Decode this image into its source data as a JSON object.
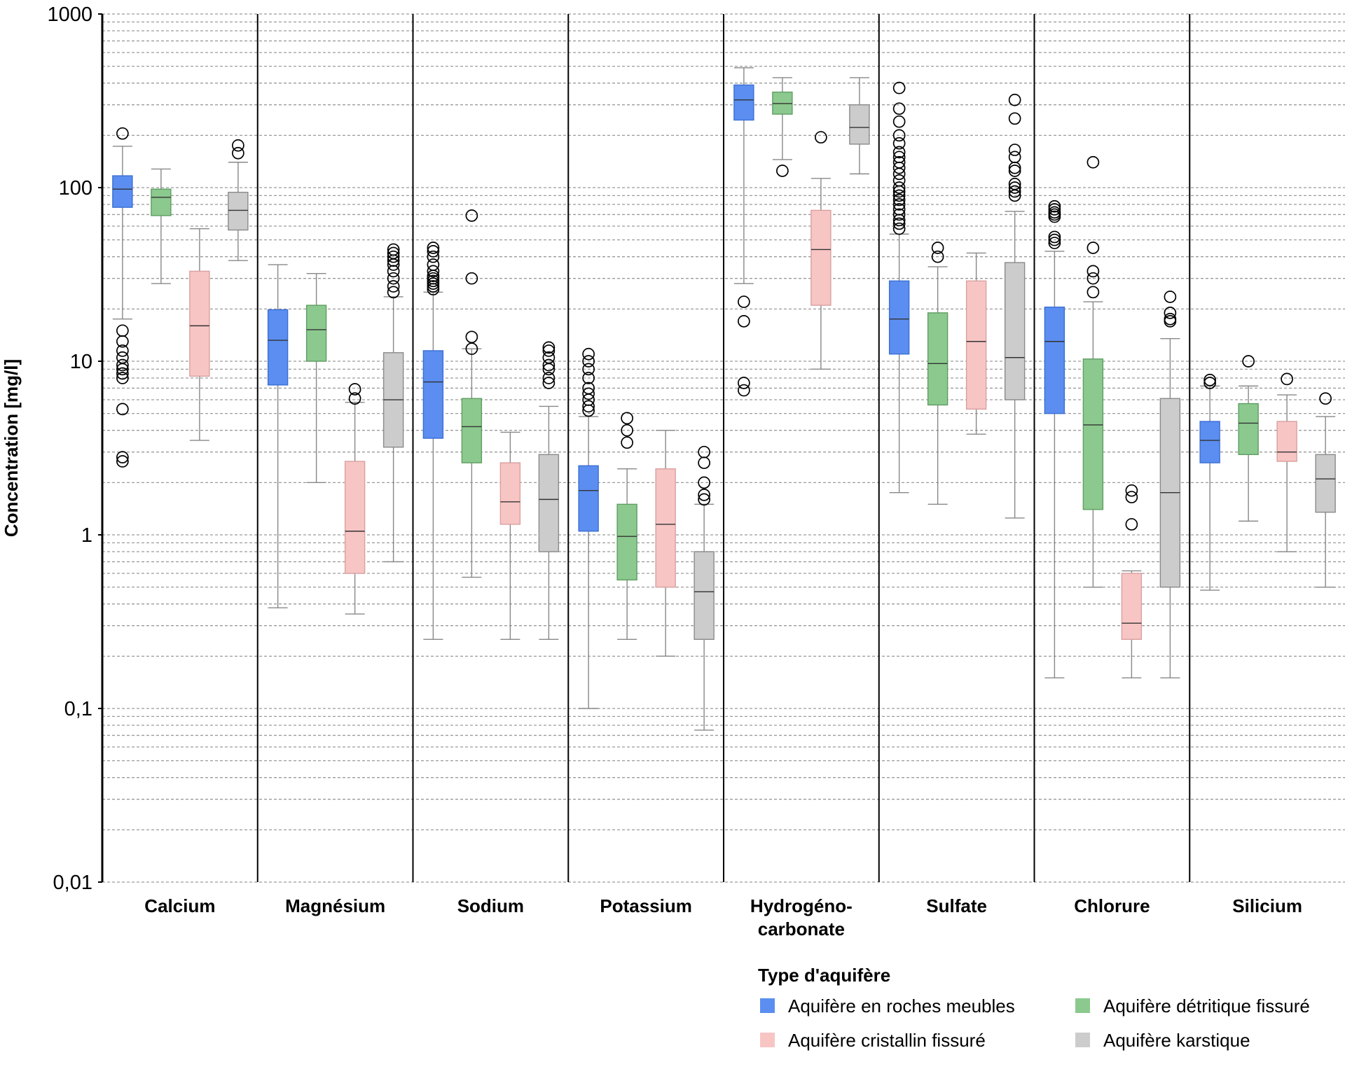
{
  "chart_data": {
    "type": "box",
    "ylabel": "Concentration [mg/l]",
    "yscale": "log",
    "ylim": [
      0.01,
      1000
    ],
    "yticks": [
      {
        "value": 1000,
        "label": "1000"
      },
      {
        "value": 100,
        "label": "100"
      },
      {
        "value": 10,
        "label": "10"
      },
      {
        "value": 1,
        "label": "1"
      },
      {
        "value": 0.1,
        "label": "0,1"
      },
      {
        "value": 0.01,
        "label": "0,01"
      }
    ],
    "grid": "minor dashed",
    "categories": [
      "Calcium",
      "Magnésium",
      "Sodium",
      "Potassium",
      "Hydrogéno-\ncarbonate",
      "Sulfate",
      "Chlorure",
      "Silicium"
    ],
    "legend": {
      "title": "Type d'aquifère",
      "placement": "bottom-right"
    },
    "series": [
      {
        "name": "Aquifère en roches meubles",
        "color": "#5b8ef0",
        "boxes": [
          {
            "whisker_low": 17.5,
            "q1": 77,
            "median": 98,
            "q3": 117,
            "whisker_high": 173,
            "outliers": [
              205,
              15,
              13,
              11.5,
              10.5,
              9.5,
              9,
              8.5,
              8,
              5.3,
              2.8,
              2.65
            ]
          },
          {
            "whisker_low": 0.38,
            "q1": 7.3,
            "median": 13.2,
            "q3": 19.8,
            "whisker_high": 36,
            "outliers": []
          },
          {
            "whisker_low": 0.25,
            "q1": 3.6,
            "median": 7.6,
            "q3": 11.5,
            "whisker_high": 25,
            "outliers": [
              45,
              43,
              40,
              36,
              33,
              31,
              30,
              29,
              28,
              27,
              26
            ]
          },
          {
            "whisker_low": 0.1,
            "q1": 1.05,
            "median": 1.8,
            "q3": 2.5,
            "whisker_high": 4.8,
            "outliers": [
              11,
              10,
              9,
              8,
              7,
              6.5,
              6,
              5.5,
              5.2
            ]
          },
          {
            "whisker_low": 28,
            "q1": 245,
            "median": 320,
            "q3": 390,
            "whisker_high": 490,
            "outliers": [
              22,
              17,
              7.5,
              6.8
            ]
          },
          {
            "whisker_low": 1.75,
            "q1": 11,
            "median": 17.5,
            "q3": 29,
            "whisker_high": 54,
            "outliers": [
              375,
              285,
              240,
              200,
              180,
              160,
              150,
              140,
              130,
              120,
              110,
              100,
              95,
              90,
              85,
              80,
              75,
              70,
              65,
              62,
              58
            ]
          },
          {
            "whisker_low": 0.15,
            "q1": 5,
            "median": 13,
            "q3": 20.5,
            "whisker_high": 43,
            "outliers": [
              78,
              75,
              72,
              70,
              68,
              52,
              50,
              48
            ]
          },
          {
            "whisker_low": 0.48,
            "q1": 2.6,
            "median": 3.5,
            "q3": 4.5,
            "whisker_high": 7.2,
            "outliers": [
              7.8,
              7.5
            ]
          }
        ]
      },
      {
        "name": "Aquifère détritique fissuré",
        "color": "#8cc98e",
        "boxes": [
          {
            "whisker_low": 28,
            "q1": 69,
            "median": 88,
            "q3": 98,
            "whisker_high": 128,
            "outliers": []
          },
          {
            "whisker_low": 2,
            "q1": 10,
            "median": 15.2,
            "q3": 21,
            "whisker_high": 32,
            "outliers": []
          },
          {
            "whisker_low": 0.57,
            "q1": 2.6,
            "median": 4.2,
            "q3": 6.1,
            "whisker_high": 11.8,
            "outliers": [
              69,
              30,
              13.8,
              11.8
            ]
          },
          {
            "whisker_low": 0.25,
            "q1": 0.55,
            "median": 0.98,
            "q3": 1.5,
            "whisker_high": 2.4,
            "outliers": [
              4.7,
              4.0,
              3.4
            ]
          },
          {
            "whisker_low": 145,
            "q1": 265,
            "median": 305,
            "q3": 355,
            "whisker_high": 430,
            "outliers": [
              125
            ]
          },
          {
            "whisker_low": 1.5,
            "q1": 5.6,
            "median": 9.7,
            "q3": 19,
            "whisker_high": 35,
            "outliers": [
              45,
              40
            ]
          },
          {
            "whisker_low": 0.5,
            "q1": 1.4,
            "median": 4.3,
            "q3": 10.3,
            "whisker_high": 22,
            "outliers": [
              140,
              45,
              33,
              30,
              25
            ]
          },
          {
            "whisker_low": 1.2,
            "q1": 2.9,
            "median": 4.4,
            "q3": 5.7,
            "whisker_high": 7.2,
            "outliers": [
              10
            ]
          }
        ]
      },
      {
        "name": "Aquifère cristallin fissuré",
        "color": "#f8c5c5",
        "boxes": [
          {
            "whisker_low": 3.5,
            "q1": 8.2,
            "median": 16,
            "q3": 33,
            "whisker_high": 58,
            "outliers": []
          },
          {
            "whisker_low": 0.35,
            "q1": 0.6,
            "median": 1.05,
            "q3": 2.65,
            "whisker_high": 5.8,
            "outliers": [
              6.9,
              6.1
            ]
          },
          {
            "whisker_low": 0.25,
            "q1": 1.15,
            "median": 1.55,
            "q3": 2.6,
            "whisker_high": 3.9,
            "outliers": []
          },
          {
            "whisker_low": 0.2,
            "q1": 0.5,
            "median": 1.15,
            "q3": 2.4,
            "whisker_high": 4,
            "outliers": []
          },
          {
            "whisker_low": 9,
            "q1": 21,
            "median": 44,
            "q3": 74,
            "whisker_high": 113,
            "outliers": [
              195
            ]
          },
          {
            "whisker_low": 3.8,
            "q1": 5.3,
            "median": 13,
            "q3": 29,
            "whisker_high": 42,
            "outliers": []
          },
          {
            "whisker_low": 0.15,
            "q1": 0.25,
            "median": 0.31,
            "q3": 0.6,
            "whisker_high": 0.62,
            "outliers": [
              1.8,
              1.65,
              1.15
            ]
          },
          {
            "whisker_low": 0.8,
            "q1": 2.65,
            "median": 3.0,
            "q3": 4.5,
            "whisker_high": 6.4,
            "outliers": [
              7.9
            ]
          }
        ]
      },
      {
        "name": "Aquifère karstique",
        "color": "#cccccc",
        "boxes": [
          {
            "whisker_low": 38,
            "q1": 57,
            "median": 74,
            "q3": 94,
            "whisker_high": 140,
            "outliers": [
              175,
              158
            ]
          },
          {
            "whisker_low": 0.7,
            "q1": 3.2,
            "median": 6,
            "q3": 11.2,
            "whisker_high": 23.5,
            "outliers": [
              44,
              42,
              40,
              38,
              36,
              33,
              30,
              27,
              25
            ]
          },
          {
            "whisker_low": 0.25,
            "q1": 0.8,
            "median": 1.6,
            "q3": 2.9,
            "whisker_high": 5.5,
            "outliers": [
              12,
              11.5,
              10.5,
              9.5,
              9,
              8,
              7.5
            ]
          },
          {
            "whisker_low": 0.075,
            "q1": 0.25,
            "median": 0.47,
            "q3": 0.8,
            "whisker_high": 1.5,
            "outliers": [
              3,
              2.6,
              2.0,
              1.7,
              1.6
            ]
          },
          {
            "whisker_low": 120,
            "q1": 178,
            "median": 222,
            "q3": 300,
            "whisker_high": 430,
            "outliers": []
          },
          {
            "whisker_low": 1.25,
            "q1": 6,
            "median": 10.5,
            "q3": 37,
            "whisker_high": 73,
            "outliers": [
              320,
              250,
              165,
              150,
              130,
              125,
              105,
              100,
              95,
              90
            ]
          },
          {
            "whisker_low": 0.15,
            "q1": 0.5,
            "median": 1.75,
            "q3": 6.1,
            "whisker_high": 13.5,
            "outliers": [
              23.5,
              19,
              17.5,
              17
            ]
          },
          {
            "whisker_low": 0.5,
            "q1": 1.35,
            "median": 2.1,
            "q3": 2.9,
            "whisker_high": 4.8,
            "outliers": [
              6.1
            ]
          }
        ]
      }
    ]
  }
}
